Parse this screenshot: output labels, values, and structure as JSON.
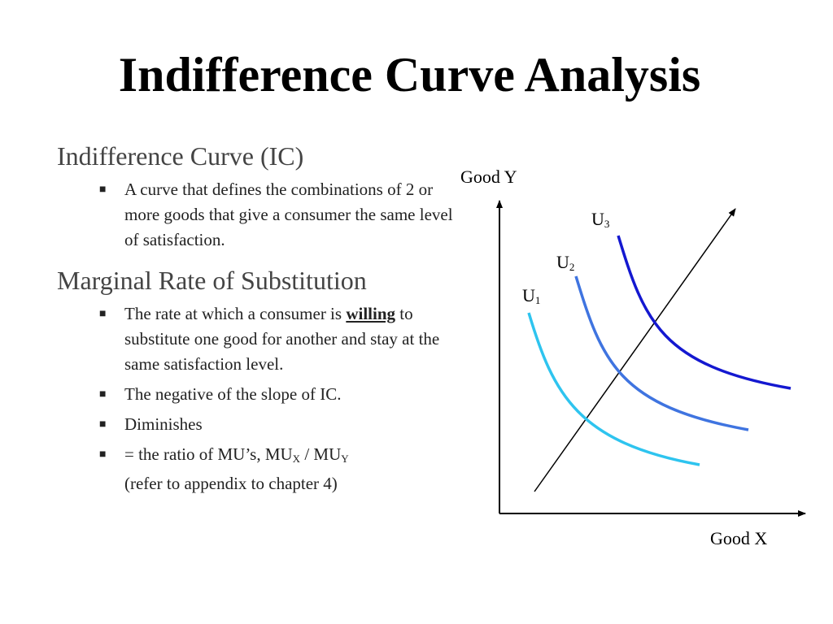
{
  "title": "Indifference Curve Analysis",
  "sections": [
    {
      "heading": "Indifference Curve (IC)",
      "bullets": [
        {
          "text": "A curve that defines the combinations of 2 or more goods that give a consumer the same level of satisfaction."
        }
      ]
    },
    {
      "heading": "Marginal Rate of Substitution",
      "bullets": [
        {
          "pre": "The rate at which a consumer is ",
          "emph": "willing",
          "post": " to substitute one good for another and stay at the same satisfaction level."
        },
        {
          "text": "The negative of the slope of IC."
        },
        {
          "text": "Diminishes"
        },
        {
          "pre": "= the ratio of MU’s, MU",
          "sub1": "X",
          "mid": " / MU",
          "sub2": "Y",
          "post": " (refer to appendix to chapter 4)"
        }
      ]
    }
  ],
  "bullet_glyph": "■",
  "graph": {
    "y_axis_label": "Good Y",
    "x_axis_label": "Good X",
    "curves": [
      {
        "base": "U",
        "sub": "1",
        "color": "#2ec4ef"
      },
      {
        "base": "U",
        "sub": "2",
        "color": "#3f74e0"
      },
      {
        "base": "U",
        "sub": "3",
        "color": "#1418d0"
      }
    ],
    "axis_color": "#000000"
  }
}
